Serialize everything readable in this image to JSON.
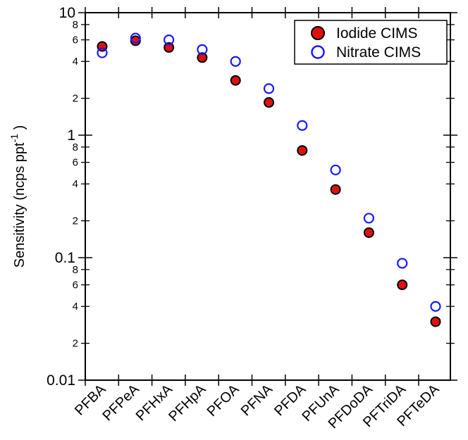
{
  "chart_data": {
    "type": "scatter",
    "yscale": "log",
    "ylim": [
      0.01,
      10
    ],
    "ylabel": "Sensitivity (ncps ppt",
    "ylabel_superscript": "-1",
    "ylabel_suffix": " )",
    "categories": [
      "PFBA",
      "PFPeA",
      "PFHxA",
      "PFHpA",
      "PFOA",
      "PFNA",
      "PFDA",
      "PFUnA",
      "PFDoDA",
      "PFTriDA",
      "PFTeDA"
    ],
    "y_major_ticks": [
      {
        "value": 0.01,
        "label": "0.01"
      },
      {
        "value": 0.1,
        "label": "0.1"
      },
      {
        "value": 1,
        "label": "1"
      },
      {
        "value": 10,
        "label": "10"
      }
    ],
    "y_minor_ticks": [
      {
        "value": 0.02,
        "label": "2"
      },
      {
        "value": 0.04,
        "label": "4"
      },
      {
        "value": 0.06,
        "label": "6"
      },
      {
        "value": 0.08,
        "label": "8"
      },
      {
        "value": 0.2,
        "label": "2"
      },
      {
        "value": 0.4,
        "label": "4"
      },
      {
        "value": 0.6,
        "label": "6"
      },
      {
        "value": 0.8,
        "label": "8"
      },
      {
        "value": 2,
        "label": "2"
      },
      {
        "value": 4,
        "label": "4"
      },
      {
        "value": 6,
        "label": "6"
      },
      {
        "value": 8,
        "label": "8"
      }
    ],
    "legend_position": "top-right",
    "series": [
      {
        "name": "Iodide CIMS",
        "marker": "filled-circle",
        "color": "#e01010",
        "values": [
          5.3,
          5.9,
          5.2,
          4.3,
          2.8,
          1.85,
          0.75,
          0.36,
          0.16,
          0.06,
          0.03
        ]
      },
      {
        "name": "Nitrate CIMS",
        "marker": "open-circle",
        "color": "#1a1aff",
        "values": [
          4.7,
          6.2,
          6.0,
          5.0,
          4.0,
          2.4,
          1.2,
          0.52,
          0.21,
          0.09,
          0.04
        ]
      }
    ]
  }
}
